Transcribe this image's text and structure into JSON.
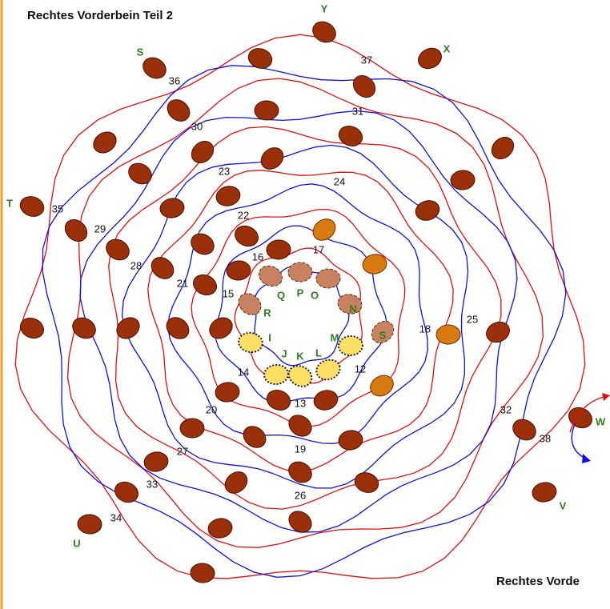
{
  "header": {
    "title": "Rechtes Vorderbein Teil 2",
    "footer": "Rechtes Vorde"
  },
  "numbers": [
    "37",
    "36",
    "31",
    "30",
    "24",
    "23",
    "22",
    "35",
    "29",
    "28",
    "21",
    "16",
    "17",
    "15",
    "18",
    "25",
    "14",
    "12",
    "13",
    "20",
    "19",
    "27",
    "32",
    "38",
    "33",
    "26",
    "34"
  ],
  "letters": [
    "Y",
    "X",
    "S",
    "T",
    "Q",
    "P",
    "O",
    "N",
    "R",
    "I",
    "M",
    "S",
    "J",
    "K",
    "L",
    "W",
    "V",
    "U"
  ]
}
